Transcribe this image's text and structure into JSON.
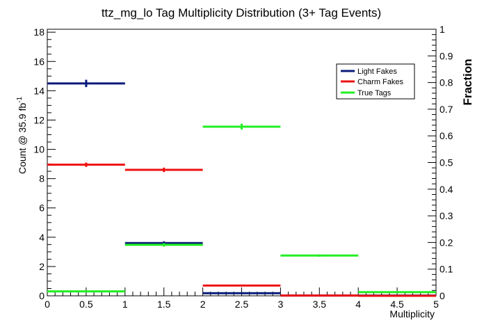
{
  "chart_data": {
    "type": "histogram",
    "title": "ttz_mg_lo Tag Multiplicity Distribution (3+ Tag Events)",
    "xlabel": "Multiplicity",
    "ylabel": "Count @ 35.9 fb",
    "ylabel_superscript": "-1",
    "y2label": "Fraction",
    "xlim": [
      0,
      5
    ],
    "ylim": [
      0,
      18.2
    ],
    "y2lim": [
      0,
      1
    ],
    "x_ticks": [
      "0",
      "0.5",
      "1",
      "1.5",
      "2",
      "2.5",
      "3",
      "3.5",
      "4",
      "4.5",
      "5"
    ],
    "y_ticks": [
      "0",
      "2",
      "4",
      "6",
      "8",
      "10",
      "12",
      "14",
      "16",
      "18"
    ],
    "y2_ticks": [
      "0",
      "0.1",
      "0.2",
      "0.3",
      "0.4",
      "0.5",
      "0.6",
      "0.7",
      "0.8",
      "0.9",
      "1"
    ],
    "bin_edges": [
      0,
      1,
      2,
      3,
      4,
      5
    ],
    "series": [
      {
        "name": "Light Fakes",
        "color": "#0a1a7a",
        "values": [
          14.5,
          3.6,
          0.18,
          0.02,
          0.02
        ],
        "errors": [
          0.25,
          0.12,
          0.03,
          0.01,
          0.01
        ]
      },
      {
        "name": "Charm Fakes",
        "color": "#ee1111",
        "values": [
          8.95,
          8.6,
          0.7,
          0.02,
          0.0
        ],
        "errors": [
          0.15,
          0.15,
          0.05,
          0.01,
          0.0
        ]
      },
      {
        "name": "True Tags",
        "color": "#22ee22",
        "values": [
          0.3,
          3.48,
          11.55,
          2.75,
          0.25
        ],
        "errors": [
          0.03,
          0.12,
          0.2,
          0.08,
          0.03
        ]
      }
    ],
    "legend": "top-right",
    "grid": false
  }
}
